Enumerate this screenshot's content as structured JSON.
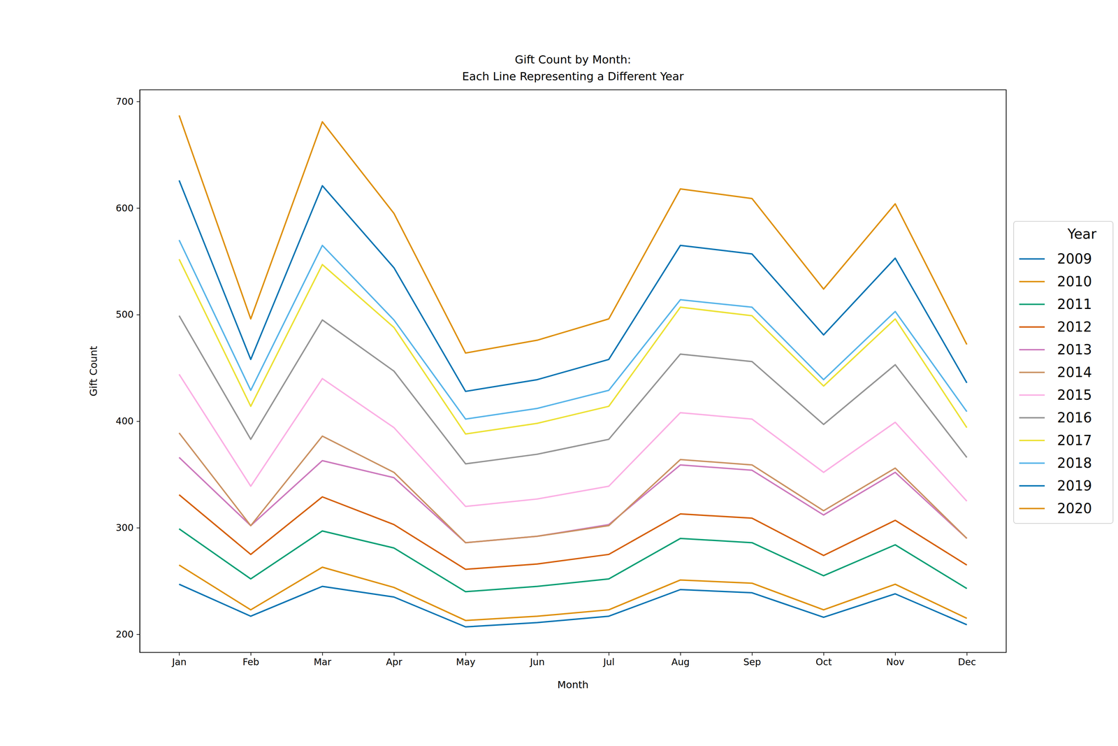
{
  "chart_data": {
    "type": "line",
    "title": "Gift Count by Month:\nEach Line Representing a Different Year",
    "x_label": "Month",
    "y_label": "Gift Count",
    "legend_title": "Year",
    "legend": "right",
    "grid": false,
    "categories": [
      "Jan",
      "Feb",
      "Mar",
      "Apr",
      "May",
      "Jun",
      "Jul",
      "Aug",
      "Sep",
      "Oct",
      "Nov",
      "Dec"
    ],
    "ylim": [
      183,
      711
    ],
    "yticks": [
      200,
      300,
      400,
      500,
      600,
      700
    ],
    "series": [
      {
        "name": "2009",
        "color": "#0173b2",
        "values": [
          247,
          217,
          245,
          235,
          207,
          211,
          217,
          242,
          239,
          216,
          238,
          209
        ]
      },
      {
        "name": "2010",
        "color": "#de8f05",
        "values": [
          265,
          223,
          263,
          244,
          213,
          217,
          223,
          251,
          248,
          223,
          247,
          215
        ]
      },
      {
        "name": "2011",
        "color": "#029e73",
        "values": [
          299,
          252,
          297,
          281,
          240,
          245,
          252,
          290,
          286,
          255,
          284,
          243
        ]
      },
      {
        "name": "2012",
        "color": "#d55e00",
        "values": [
          331,
          275,
          329,
          303,
          261,
          266,
          275,
          313,
          309,
          274,
          307,
          265
        ]
      },
      {
        "name": "2013",
        "color": "#cc78bc",
        "values": [
          366,
          302,
          363,
          347,
          286,
          292,
          303,
          359,
          354,
          312,
          352,
          290
        ]
      },
      {
        "name": "2014",
        "color": "#ca9161",
        "values": [
          389,
          302,
          386,
          352,
          286,
          292,
          302,
          364,
          359,
          316,
          356,
          290
        ]
      },
      {
        "name": "2015",
        "color": "#fbafe4",
        "values": [
          444,
          339,
          440,
          394,
          320,
          327,
          339,
          408,
          402,
          352,
          399,
          325
        ]
      },
      {
        "name": "2016",
        "color": "#949494",
        "values": [
          499,
          383,
          495,
          447,
          360,
          369,
          383,
          463,
          456,
          397,
          453,
          366
        ]
      },
      {
        "name": "2017",
        "color": "#ece133",
        "values": [
          552,
          414,
          547,
          488,
          388,
          398,
          414,
          507,
          499,
          433,
          496,
          394
        ]
      },
      {
        "name": "2018",
        "color": "#56b4e9",
        "values": [
          570,
          429,
          565,
          495,
          402,
          412,
          429,
          514,
          507,
          439,
          503,
          409
        ]
      },
      {
        "name": "2019",
        "color": "#0173b2",
        "values": [
          626,
          458,
          621,
          544,
          428,
          439,
          458,
          565,
          557,
          481,
          553,
          436
        ]
      },
      {
        "name": "2020",
        "color": "#de8f05",
        "values": [
          687,
          496,
          681,
          595,
          464,
          476,
          496,
          618,
          609,
          524,
          604,
          472
        ]
      }
    ]
  }
}
